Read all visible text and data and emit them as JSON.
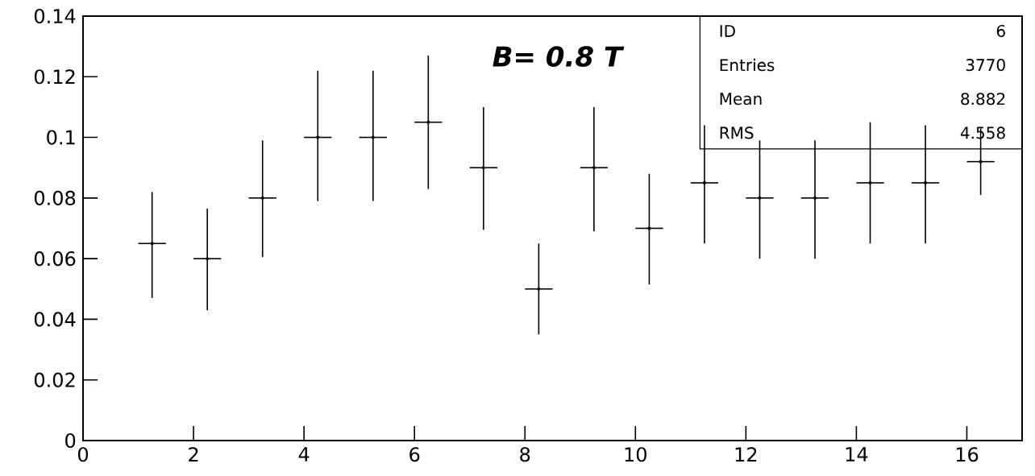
{
  "chart_data": {
    "type": "scatter",
    "annotations": [
      "B= 0.8 T",
      "ID",
      "6",
      "Entries",
      "3770",
      "Mean",
      "8.882",
      "RMS",
      "4.558"
    ],
    "xlim": [
      0,
      17
    ],
    "ylim": [
      0,
      0.14
    ],
    "xticks": [
      0,
      2,
      4,
      6,
      8,
      10,
      12,
      14,
      16
    ],
    "yticks": [
      0,
      0.02,
      0.04,
      0.06,
      0.08,
      0.1,
      0.12,
      0.14
    ],
    "x": [
      1.25,
      2.25,
      3.25,
      4.25,
      5.25,
      6.25,
      7.25,
      8.25,
      9.25,
      10.25,
      11.25,
      12.25,
      13.25,
      14.25,
      15.25,
      16.25
    ],
    "series": [
      {
        "color": "#000000",
        "values": [
          0.065,
          0.06,
          0.08,
          0.1,
          0.1,
          0.105,
          0.09,
          0.05,
          0.09,
          0.07,
          0.085,
          0.08,
          0.08,
          0.085,
          0.085,
          0.092
        ],
        "errors": [
          [
            0.047,
            0.082
          ],
          [
            0.043,
            0.0765
          ],
          [
            0.0605,
            0.099
          ],
          [
            0.079,
            0.122
          ],
          [
            0.079,
            0.122
          ],
          [
            0.083,
            0.127
          ],
          [
            0.0695,
            0.11
          ],
          [
            0.035,
            0.065
          ],
          [
            0.069,
            0.11
          ],
          [
            0.0515,
            0.088
          ],
          [
            0.065,
            0.104
          ],
          [
            0.06,
            0.099
          ],
          [
            0.06,
            0.099
          ],
          [
            0.065,
            0.105
          ],
          [
            0.065,
            0.104
          ],
          [
            0.081,
            0.103
          ]
        ],
        "xerrors": [
          0.25,
          0.25,
          0.25,
          0.25,
          0.25,
          0.25,
          0.25,
          0.25,
          0.25,
          0.25,
          0.25,
          0.25,
          0.25,
          0.25,
          0.25,
          0.25
        ]
      }
    ]
  }
}
